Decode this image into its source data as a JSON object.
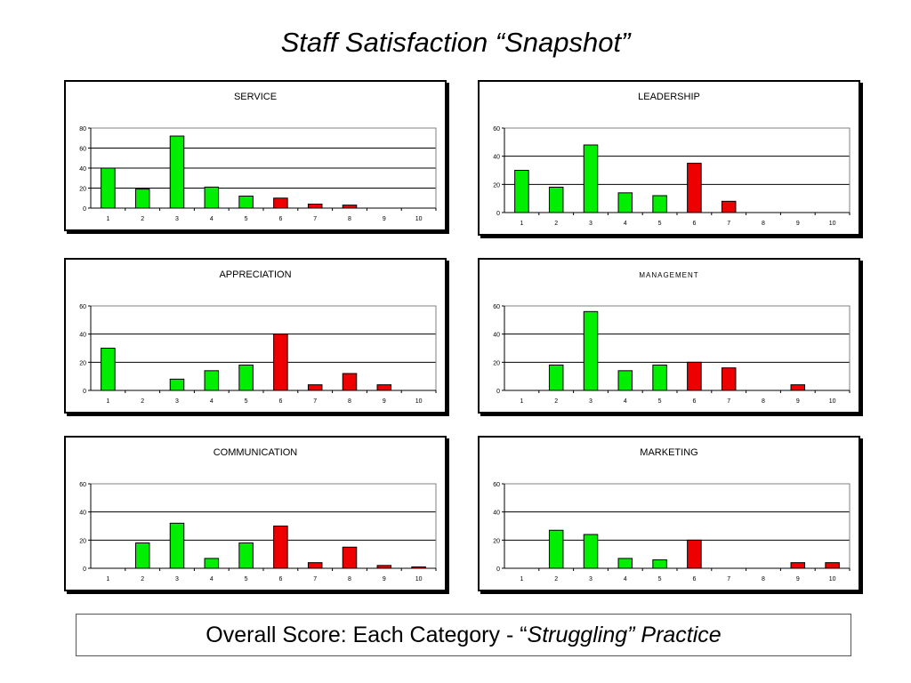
{
  "title": "Staff Satisfaction “Snapshot”",
  "footer": {
    "lead": "Overall Score: Each Category - “",
    "emphasis": "Struggling” Practice"
  },
  "colors": {
    "positive": "#00ee00",
    "negative": "#ee0000"
  },
  "chart_data": [
    {
      "type": "bar",
      "title": "SERVICE",
      "categories": [
        "1",
        "2",
        "3",
        "4",
        "5",
        "6",
        "7",
        "8",
        "9",
        "10"
      ],
      "values": [
        40,
        19,
        72,
        21,
        12,
        10,
        4,
        3,
        0,
        0
      ],
      "bar_colors": [
        "positive",
        "positive",
        "positive",
        "positive",
        "positive",
        "negative",
        "negative",
        "negative",
        "negative",
        "negative"
      ],
      "ylim": [
        0,
        80
      ],
      "yticks": [
        0,
        20,
        40,
        60,
        80
      ],
      "grid": true,
      "legend": "none"
    },
    {
      "type": "bar",
      "title": "LEADERSHIP",
      "categories": [
        "1",
        "2",
        "3",
        "4",
        "5",
        "6",
        "7",
        "8",
        "9",
        "10"
      ],
      "values": [
        30,
        18,
        48,
        14,
        12,
        35,
        8,
        0,
        0,
        0
      ],
      "bar_colors": [
        "positive",
        "positive",
        "positive",
        "positive",
        "positive",
        "negative",
        "negative",
        "negative",
        "negative",
        "negative"
      ],
      "ylim": [
        0,
        60
      ],
      "yticks": [
        0,
        20,
        40,
        60
      ],
      "grid": true,
      "legend": "none"
    },
    {
      "type": "bar",
      "title": "APPRECIATION",
      "categories": [
        "1",
        "2",
        "3",
        "4",
        "5",
        "6",
        "7",
        "8",
        "9",
        "10"
      ],
      "values": [
        30,
        0,
        8,
        14,
        18,
        40,
        4,
        12,
        4,
        0
      ],
      "bar_colors": [
        "positive",
        "positive",
        "positive",
        "positive",
        "positive",
        "negative",
        "negative",
        "negative",
        "negative",
        "negative"
      ],
      "ylim": [
        0,
        60
      ],
      "yticks": [
        0,
        20,
        40,
        60
      ],
      "grid": true,
      "legend": "none"
    },
    {
      "type": "bar",
      "title": "MANAGEMENT",
      "categories": [
        "1",
        "2",
        "3",
        "4",
        "5",
        "6",
        "7",
        "8",
        "9",
        "10"
      ],
      "values": [
        0,
        18,
        56,
        14,
        18,
        20,
        16,
        0,
        4,
        0
      ],
      "bar_colors": [
        "positive",
        "positive",
        "positive",
        "positive",
        "positive",
        "negative",
        "negative",
        "negative",
        "negative",
        "negative"
      ],
      "ylim": [
        0,
        60
      ],
      "yticks": [
        0,
        20,
        40,
        60
      ],
      "grid": true,
      "legend": "none"
    },
    {
      "type": "bar",
      "title": "COMMUNICATION",
      "categories": [
        "1",
        "2",
        "3",
        "4",
        "5",
        "6",
        "7",
        "8",
        "9",
        "10"
      ],
      "values": [
        0,
        18,
        32,
        7,
        18,
        30,
        4,
        15,
        2,
        1
      ],
      "bar_colors": [
        "positive",
        "positive",
        "positive",
        "positive",
        "positive",
        "negative",
        "negative",
        "negative",
        "negative",
        "negative"
      ],
      "ylim": [
        0,
        60
      ],
      "yticks": [
        0,
        20,
        40,
        60
      ],
      "grid": true,
      "legend": "none"
    },
    {
      "type": "bar",
      "title": "MARKETING",
      "categories": [
        "1",
        "2",
        "3",
        "4",
        "5",
        "6",
        "7",
        "8",
        "9",
        "10"
      ],
      "values": [
        0,
        27,
        24,
        7,
        6,
        20,
        0,
        0,
        4,
        4
      ],
      "bar_colors": [
        "positive",
        "positive",
        "positive",
        "positive",
        "positive",
        "negative",
        "negative",
        "negative",
        "negative",
        "negative"
      ],
      "ylim": [
        0,
        60
      ],
      "yticks": [
        0,
        20,
        40,
        60
      ],
      "grid": true,
      "legend": "none"
    }
  ]
}
